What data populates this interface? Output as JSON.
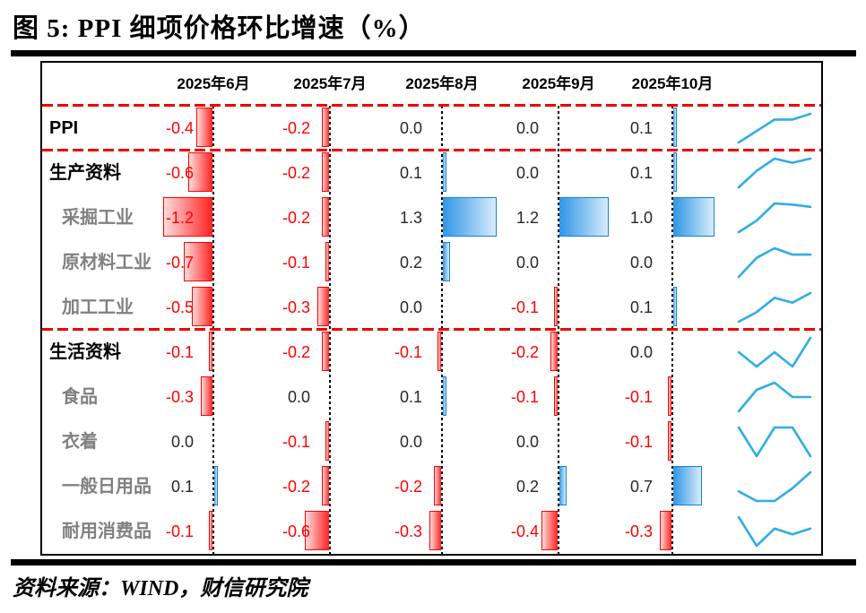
{
  "title": "图 5:  PPI 细项价格环比增速（%）",
  "source": "资料来源：WIND，财信研究院",
  "chart_data": {
    "type": "table",
    "subtype": "value-table-with-bars-and-sparklines",
    "units": "%",
    "columns": [
      "2025年6月",
      "2025年7月",
      "2025年8月",
      "2025年9月",
      "2025年10月"
    ],
    "rows": [
      {
        "label": "PPI",
        "level": 0,
        "values": [
          -0.4,
          -0.2,
          0.0,
          0.0,
          0.1
        ]
      },
      {
        "label": "生产资料",
        "level": 0,
        "values": [
          -0.6,
          -0.2,
          0.1,
          0.0,
          0.1
        ]
      },
      {
        "label": "采掘工业",
        "level": 1,
        "values": [
          -1.2,
          -0.2,
          1.3,
          1.2,
          1.0
        ]
      },
      {
        "label": "原材料工业",
        "level": 1,
        "values": [
          -0.7,
          -0.1,
          0.2,
          0.0,
          0.0
        ]
      },
      {
        "label": "加工工业",
        "level": 1,
        "values": [
          -0.5,
          -0.3,
          0.0,
          -0.1,
          0.1
        ]
      },
      {
        "label": "生活资料",
        "level": 0,
        "values": [
          -0.1,
          -0.2,
          -0.1,
          -0.2,
          0.0
        ]
      },
      {
        "label": "食品",
        "level": 1,
        "values": [
          -0.3,
          0.0,
          0.1,
          -0.1,
          -0.1
        ]
      },
      {
        "label": "衣着",
        "level": 1,
        "values": [
          0.0,
          -0.1,
          0.0,
          0.0,
          -0.1
        ]
      },
      {
        "label": "一般日用品",
        "level": 1,
        "values": [
          0.1,
          -0.2,
          -0.2,
          0.2,
          0.7
        ]
      },
      {
        "label": "耐用消费品",
        "level": 1,
        "values": [
          -0.1,
          -0.6,
          -0.3,
          -0.4,
          -0.3
        ]
      }
    ],
    "separators_after_row_index": [
      -1,
      0,
      4
    ],
    "bar_rule": "negative values: red bar extending left of month baseline; positive values: blue bar extending right; zero: no bar",
    "colors": {
      "negative_bar": "#ff0000",
      "negative_bar_fill": "#ff2222",
      "positive_bar": "#1480dc",
      "positive_bar_fill": "#2e96e6",
      "negative_text": "#ff0000",
      "positive_text": "#262626",
      "sub_label_text": "#808080",
      "sparkline": "#2faee3",
      "separator_dash": "#f00000"
    }
  }
}
